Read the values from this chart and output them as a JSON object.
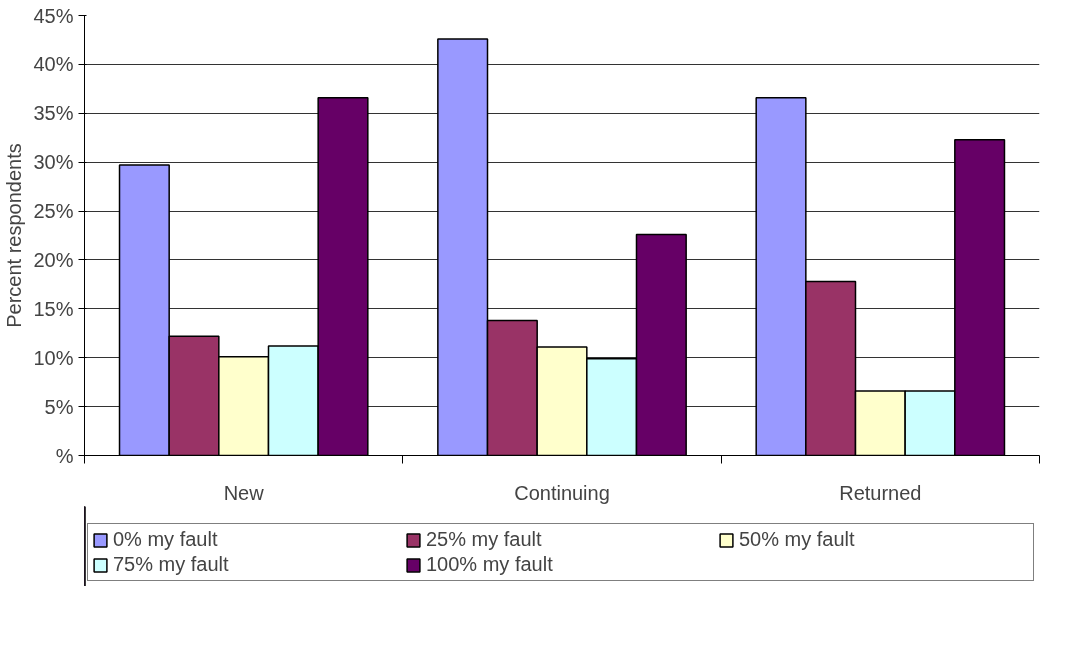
{
  "chart_data": {
    "type": "bar",
    "ylabel": "Percent respondents",
    "categories": [
      "New",
      "Continuing",
      "Returned"
    ],
    "series": [
      {
        "name": "0% my fault",
        "color": "#9999ff",
        "values": [
          29.7,
          42.6,
          36.6
        ]
      },
      {
        "name": "25% my fault",
        "color": "#993366",
        "values": [
          12.2,
          13.8,
          17.8
        ]
      },
      {
        "name": "50% my fault",
        "color": "#ffffcc",
        "values": [
          10.1,
          11.1,
          6.6
        ]
      },
      {
        "name": "75% my fault",
        "color": "#ccffff",
        "values": [
          11.2,
          9.9,
          6.6
        ]
      },
      {
        "name": "100% my fault",
        "color": "#660066",
        "values": [
          36.6,
          22.6,
          32.3
        ]
      }
    ],
    "ylim": [
      0,
      45
    ],
    "yticks": [
      {
        "value": 0,
        "label": "%"
      },
      {
        "value": 5,
        "label": "5%"
      },
      {
        "value": 10,
        "label": "10%"
      },
      {
        "value": 15,
        "label": "15%"
      },
      {
        "value": 20,
        "label": "20%"
      },
      {
        "value": 25,
        "label": "25%"
      },
      {
        "value": 30,
        "label": "30%"
      },
      {
        "value": 35,
        "label": "35%"
      },
      {
        "value": 40,
        "label": "40%"
      },
      {
        "value": 45,
        "label": "45%"
      }
    ],
    "grid": "y",
    "legend": "bottom"
  }
}
